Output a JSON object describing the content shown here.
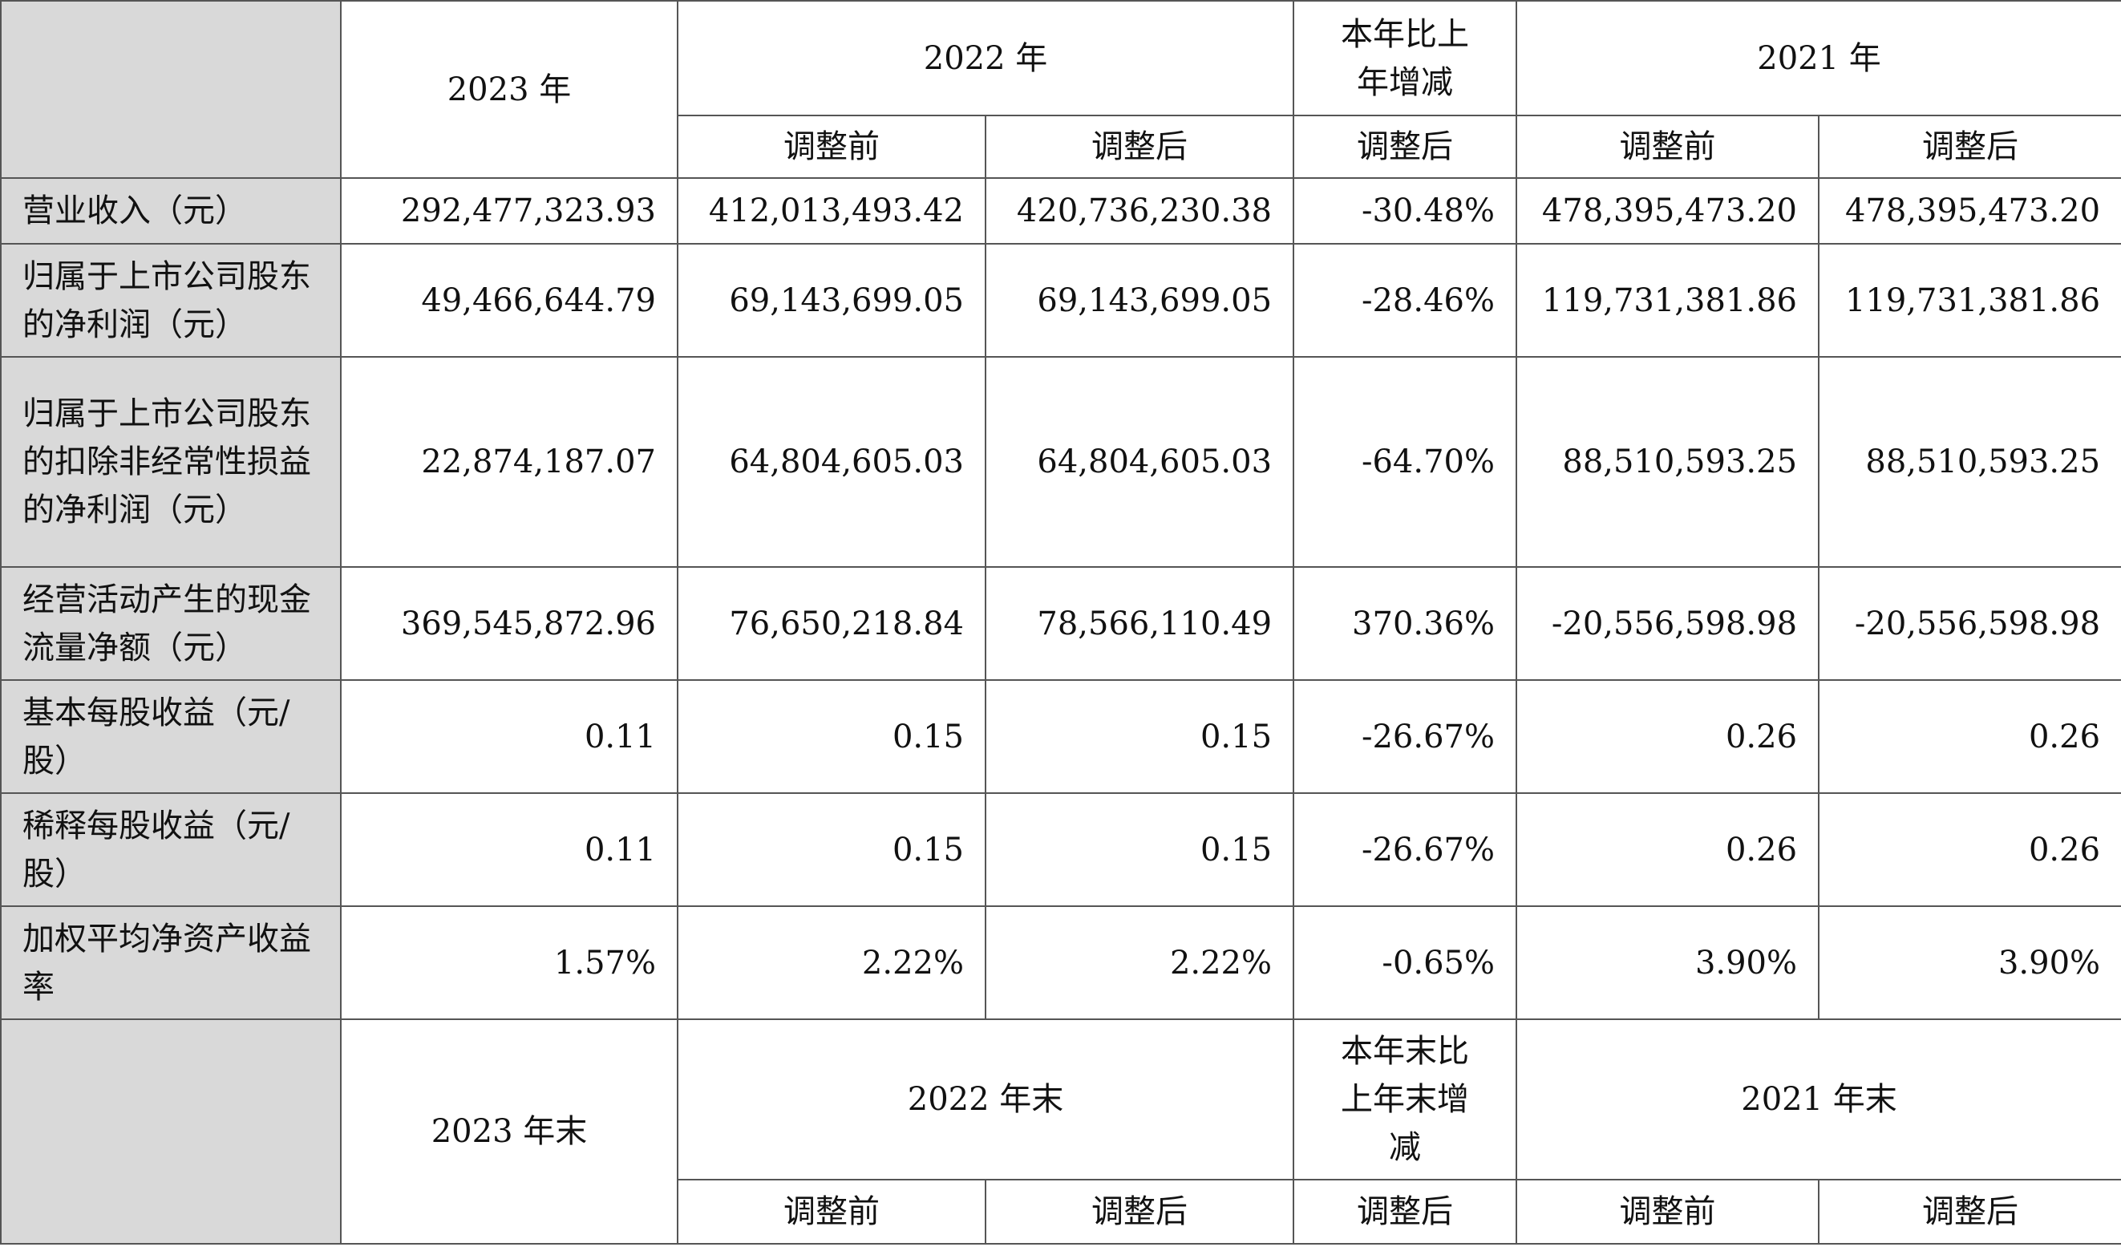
{
  "header": {
    "y2023": "2023 年",
    "y2022": "2022 年",
    "yoy": "本年比上年增减",
    "y2021": "2021 年",
    "before": "调整前",
    "after": "调整后"
  },
  "rows": [
    {
      "label": "营业收入（元）",
      "values": [
        "292,477,323.93",
        "412,013,493.42",
        "420,736,230.38",
        "-30.48%",
        "478,395,473.20",
        "478,395,473.20"
      ]
    },
    {
      "label": "归属于上市公司股东的净利润（元）",
      "values": [
        "49,466,644.79",
        "69,143,699.05",
        "69,143,699.05",
        "-28.46%",
        "119,731,381.86",
        "119,731,381.86"
      ]
    },
    {
      "label": "归属于上市公司股东的扣除非经常性损益的净利润（元）",
      "values": [
        "22,874,187.07",
        "64,804,605.03",
        "64,804,605.03",
        "-64.70%",
        "88,510,593.25",
        "88,510,593.25"
      ]
    },
    {
      "label": "经营活动产生的现金流量净额（元）",
      "values": [
        "369,545,872.96",
        "76,650,218.84",
        "78,566,110.49",
        "370.36%",
        "-20,556,598.98",
        "-20,556,598.98"
      ]
    },
    {
      "label": "基本每股收益（元/股）",
      "values": [
        "0.11",
        "0.15",
        "0.15",
        "-26.67%",
        "0.26",
        "0.26"
      ]
    },
    {
      "label": "稀释每股收益（元/股）",
      "values": [
        "0.11",
        "0.15",
        "0.15",
        "-26.67%",
        "0.26",
        "0.26"
      ]
    },
    {
      "label": "加权平均净资产收益率",
      "values": [
        "1.57%",
        "2.22%",
        "2.22%",
        "-0.65%",
        "3.90%",
        "3.90%"
      ]
    }
  ],
  "footer_header": {
    "y2023_end": "2023 年末",
    "y2022_end": "2022 年末",
    "yoy_end": "本年末比上年末增减",
    "y2021_end": "2021 年末",
    "before": "调整前",
    "after": "调整后"
  }
}
